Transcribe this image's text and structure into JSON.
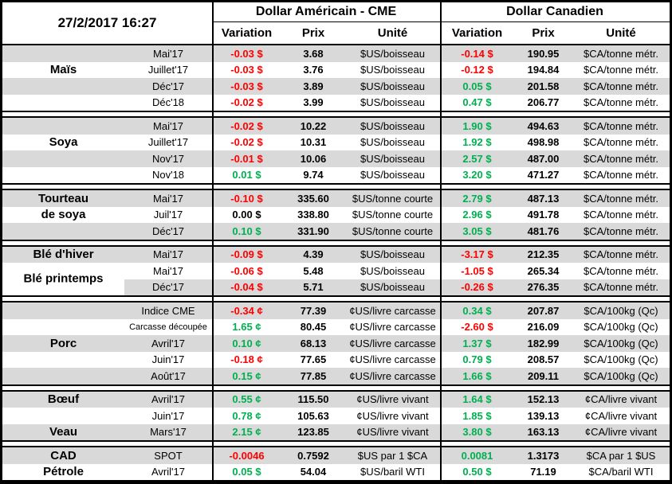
{
  "header": {
    "datetime": "27/2/2017 16:27",
    "us_title": "Dollar Américain - CME",
    "cad_title": "Dollar Canadien",
    "col_variation": "Variation",
    "col_prix": "Prix",
    "col_unite": "Unité"
  },
  "colors": {
    "negative": "#FF0000",
    "positive": "#00B050",
    "row_shade": "#D9D9D9",
    "border": "#000000"
  },
  "groups": [
    {
      "name": "mais",
      "rows": [
        {
          "label": "",
          "month": "Mai'17",
          "uv": "-0.03 $",
          "uvc": "neg",
          "up": "3.68",
          "uu": "$US/boisseau",
          "cv": "-0.14 $",
          "cvc": "neg",
          "cp": "190.95",
          "cu": "$CA/tonne métr.",
          "shade": true
        },
        {
          "label": "Maïs",
          "month": "Juillet'17",
          "uv": "-0.03 $",
          "uvc": "neg",
          "up": "3.76",
          "uu": "$US/boisseau",
          "cv": "-0.12 $",
          "cvc": "neg",
          "cp": "194.84",
          "cu": "$CA/tonne métr.",
          "shade": false
        },
        {
          "label": "",
          "month": "Déc'17",
          "uv": "-0.03 $",
          "uvc": "neg",
          "up": "3.89",
          "uu": "$US/boisseau",
          "cv": "0.05 $",
          "cvc": "pos",
          "cp": "201.58",
          "cu": "$CA/tonne métr.",
          "shade": true
        },
        {
          "label": "",
          "month": "Déc'18",
          "uv": "-0.02 $",
          "uvc": "neg",
          "up": "3.99",
          "uu": "$US/boisseau",
          "cv": "0.47 $",
          "cvc": "pos",
          "cp": "206.77",
          "cu": "$CA/tonne métr.",
          "shade": false
        }
      ]
    },
    {
      "name": "soya",
      "rows": [
        {
          "label": "",
          "month": "Mai'17",
          "uv": "-0.02 $",
          "uvc": "neg",
          "up": "10.22",
          "uu": "$US/boisseau",
          "cv": "1.90 $",
          "cvc": "pos",
          "cp": "494.63",
          "cu": "$CA/tonne métr.",
          "shade": true
        },
        {
          "label": "Soya",
          "month": "Juillet'17",
          "uv": "-0.02 $",
          "uvc": "neg",
          "up": "10.31",
          "uu": "$US/boisseau",
          "cv": "1.92 $",
          "cvc": "pos",
          "cp": "498.98",
          "cu": "$CA/tonne métr.",
          "shade": false
        },
        {
          "label": "",
          "month": "Nov'17",
          "uv": "-0.01 $",
          "uvc": "neg",
          "up": "10.06",
          "uu": "$US/boisseau",
          "cv": "2.57 $",
          "cvc": "pos",
          "cp": "487.00",
          "cu": "$CA/tonne métr.",
          "shade": true
        },
        {
          "label": "",
          "month": "Nov'18",
          "uv": "0.01 $",
          "uvc": "pos",
          "up": "9.74",
          "uu": "$US/boisseau",
          "cv": "3.20 $",
          "cvc": "pos",
          "cp": "471.27",
          "cu": "$CA/tonne métr.",
          "shade": false
        }
      ]
    },
    {
      "name": "tourteau-de-soya",
      "rows": [
        {
          "label": "Tourteau",
          "month": "Mai'17",
          "uv": "-0.10 $",
          "uvc": "neg",
          "up": "335.60",
          "uu": "$US/tonne courte",
          "cv": "2.79 $",
          "cvc": "pos",
          "cp": "487.13",
          "cu": "$CA/tonne métr.",
          "shade": true
        },
        {
          "label": "de soya",
          "month": "Juil'17",
          "uv": "0.00 $",
          "uvc": "zero",
          "up": "338.80",
          "uu": "$US/tonne courte",
          "cv": "2.96 $",
          "cvc": "pos",
          "cp": "491.78",
          "cu": "$CA/tonne métr.",
          "shade": false
        },
        {
          "label": "",
          "month": "Déc'17",
          "uv": "0.10 $",
          "uvc": "pos",
          "up": "331.90",
          "uu": "$US/tonne courte",
          "cv": "3.05 $",
          "cvc": "pos",
          "cp": "481.76",
          "cu": "$CA/tonne métr.",
          "shade": true
        }
      ]
    },
    {
      "name": "ble",
      "rows": [
        {
          "label": "Blé d'hiver",
          "month": "Mai'17",
          "uv": "-0.09 $",
          "uvc": "neg",
          "up": "4.39",
          "uu": "$US/boisseau",
          "cv": "-3.17 $",
          "cvc": "neg",
          "cp": "212.35",
          "cu": "$CA/tonne métr.",
          "shade": true
        },
        {
          "label": "Blé printemps",
          "label_span2": true,
          "month": "Mai'17",
          "uv": "-0.06 $",
          "uvc": "neg",
          "up": "5.48",
          "uu": "$US/boisseau",
          "cv": "-1.05 $",
          "cvc": "neg",
          "cp": "265.34",
          "cu": "$CA/tonne métr.",
          "shade": false
        },
        {
          "label": "",
          "label_white": true,
          "month": "Déc'17",
          "uv": "-0.04 $",
          "uvc": "neg",
          "up": "5.71",
          "uu": "$US/boisseau",
          "cv": "-0.26 $",
          "cvc": "neg",
          "cp": "276.35",
          "cu": "$CA/tonne métr.",
          "shade": true
        }
      ]
    },
    {
      "name": "porc",
      "rows": [
        {
          "label": "",
          "month": "Indice CME",
          "uv": "-0.34 ¢",
          "uvc": "neg",
          "up": "77.39",
          "uu": "¢US/livre carcasse",
          "cv": "0.34 $",
          "cvc": "pos",
          "cp": "207.87",
          "cu": "$CA/100kg (Qc)",
          "shade": true
        },
        {
          "label": "",
          "month": "Carcasse découpée",
          "month_small": true,
          "uv": "1.65 ¢",
          "uvc": "pos",
          "up": "80.45",
          "uu": "¢US/livre carcasse",
          "cv": "-2.60 $",
          "cvc": "neg",
          "cp": "216.09",
          "cu": "$CA/100kg (Qc)",
          "shade": false
        },
        {
          "label": "Porc",
          "month": "Avril'17",
          "uv": "0.10 ¢",
          "uvc": "pos",
          "up": "68.13",
          "uu": "¢US/livre carcasse",
          "cv": "1.37 $",
          "cvc": "pos",
          "cp": "182.99",
          "cu": "$CA/100kg (Qc)",
          "shade": true
        },
        {
          "label": "",
          "month": "Juin'17",
          "uv": "-0.18 ¢",
          "uvc": "neg",
          "up": "77.65",
          "uu": "¢US/livre carcasse",
          "cv": "0.79 $",
          "cvc": "pos",
          "cp": "208.57",
          "cu": "$CA/100kg (Qc)",
          "shade": false
        },
        {
          "label": "",
          "month": "Août'17",
          "uv": "0.15 ¢",
          "uvc": "pos",
          "up": "77.85",
          "uu": "¢US/livre carcasse",
          "cv": "1.66 $",
          "cvc": "pos",
          "cp": "209.11",
          "cu": "$CA/100kg (Qc)",
          "shade": true
        }
      ]
    },
    {
      "name": "boeuf-veau",
      "rows": [
        {
          "label": "Bœuf",
          "month": "Avril'17",
          "uv": "0.55 ¢",
          "uvc": "pos",
          "up": "115.50",
          "uu": "¢US/livre vivant",
          "cv": "1.64 $",
          "cvc": "pos",
          "cp": "152.13",
          "cu": "¢CA/livre vivant",
          "shade": true
        },
        {
          "label": "",
          "month": "Juin'17",
          "uv": "0.78 ¢",
          "uvc": "pos",
          "up": "105.63",
          "uu": "¢US/livre vivant",
          "cv": "1.85 $",
          "cvc": "pos",
          "cp": "139.13",
          "cu": "¢CA/livre vivant",
          "shade": false
        },
        {
          "label": "Veau",
          "month": "Mars'17",
          "uv": "2.15 ¢",
          "uvc": "pos",
          "up": "123.85",
          "uu": "¢US/livre vivant",
          "cv": "3.80 $",
          "cvc": "pos",
          "cp": "163.13",
          "cu": "¢CA/livre vivant",
          "shade": true
        }
      ]
    },
    {
      "name": "cad-petrole",
      "rows": [
        {
          "label": "CAD",
          "month": "SPOT",
          "uv": "-0.0046",
          "uvc": "neg",
          "up": "0.7592",
          "uu": "$US par 1 $CA",
          "cv": "0.0081",
          "cvc": "pos",
          "cp": "1.3173",
          "cu": "$CA par 1 $US",
          "shade": true
        },
        {
          "label": "Pétrole",
          "month": "Avril'17",
          "uv": "0.05 $",
          "uvc": "pos",
          "up": "54.04",
          "uu": "$US/baril WTI",
          "cv": "0.50 $",
          "cvc": "pos",
          "cp": "71.19",
          "cu": "$CA/baril WTI",
          "shade": false
        }
      ]
    }
  ]
}
